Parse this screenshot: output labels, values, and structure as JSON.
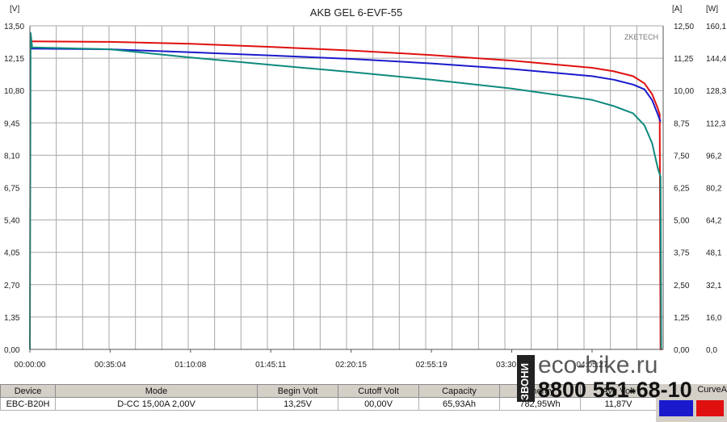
{
  "chart_data": {
    "type": "line",
    "title": "AKB GEL  6-EVF-55",
    "brand_label": "ZKETECH",
    "grid": true,
    "left_axis": {
      "unit_label": "[V]",
      "ylim": [
        0,
        13.5
      ],
      "ticks": [
        "0,00",
        "1,35",
        "2,70",
        "4,05",
        "5,40",
        "6,75",
        "8,10",
        "9,45",
        "10,80",
        "12,15",
        "13,50"
      ]
    },
    "current_axis": {
      "unit_label": "[A]",
      "ylim": [
        0,
        12.5
      ],
      "ticks": [
        "0,00",
        "1,25",
        "2,50",
        "3,75",
        "5,00",
        "6,25",
        "7,50",
        "8,75",
        "10,00",
        "11,25",
        "12,50"
      ]
    },
    "power_axis": {
      "unit_label": "[W]",
      "ylim": [
        0,
        160.1
      ],
      "ticks": [
        "0,0",
        "16,0",
        "32,1",
        "48,1",
        "64,2",
        "80,2",
        "96,2",
        "112,3",
        "128,3",
        "144,4",
        "160,1"
      ]
    },
    "x_axis": {
      "unit": "time",
      "range_seconds": [
        0,
        16590
      ],
      "ticks": [
        {
          "label": "00:00:00",
          "seconds": 0
        },
        {
          "label": "00:35:04",
          "seconds": 2104
        },
        {
          "label": "01:10:08",
          "seconds": 4208
        },
        {
          "label": "01:45:11",
          "seconds": 6311
        },
        {
          "label": "02:20:15",
          "seconds": 8415
        },
        {
          "label": "02:55:19",
          "seconds": 10519
        },
        {
          "label": "03:30:23",
          "seconds": 12623
        },
        {
          "label": "04:05:27",
          "seconds": 14727
        }
      ]
    },
    "series": [
      {
        "color": "#e01010",
        "axis": "left",
        "points": [
          [
            0,
            12.85
          ],
          [
            2104,
            12.83
          ],
          [
            4208,
            12.75
          ],
          [
            6311,
            12.62
          ],
          [
            8415,
            12.47
          ],
          [
            10519,
            12.28
          ],
          [
            12623,
            12.05
          ],
          [
            14727,
            11.75
          ],
          [
            15300,
            11.6
          ],
          [
            15800,
            11.4
          ],
          [
            16100,
            11.1
          ],
          [
            16300,
            10.65
          ],
          [
            16450,
            10.05
          ],
          [
            16500,
            9.8
          ],
          [
            16520,
            0
          ],
          [
            16560,
            0
          ]
        ]
      },
      {
        "color": "#1a1acc",
        "axis": "left",
        "points": [
          [
            0,
            12.55
          ],
          [
            2104,
            12.52
          ],
          [
            4208,
            12.4
          ],
          [
            6311,
            12.26
          ],
          [
            8415,
            12.12
          ],
          [
            10519,
            11.93
          ],
          [
            12623,
            11.7
          ],
          [
            14727,
            11.4
          ],
          [
            15300,
            11.25
          ],
          [
            15800,
            11.05
          ],
          [
            16100,
            10.85
          ],
          [
            16300,
            10.4
          ],
          [
            16450,
            9.8
          ],
          [
            16520,
            9.5
          ]
        ]
      },
      {
        "color": "#0e8a7e",
        "axis": "left",
        "points": [
          [
            0,
            0
          ],
          [
            20,
            13.2
          ],
          [
            60,
            12.6
          ],
          [
            2104,
            12.52
          ],
          [
            4208,
            12.18
          ],
          [
            6311,
            11.87
          ],
          [
            8415,
            11.57
          ],
          [
            10519,
            11.25
          ],
          [
            12623,
            10.88
          ],
          [
            14727,
            10.41
          ],
          [
            15300,
            10.15
          ],
          [
            15800,
            9.85
          ],
          [
            16100,
            9.35
          ],
          [
            16300,
            8.6
          ],
          [
            16450,
            7.55
          ],
          [
            16520,
            7.2
          ],
          [
            16540,
            0
          ]
        ]
      }
    ]
  },
  "footer": {
    "headers": [
      "Device",
      "Mode",
      "Begin Volt",
      "Cutoff Volt",
      "Capacity",
      "Energy",
      "Avg Volt"
    ],
    "values": [
      "EBC-B20H",
      "D-CC  15,00A  2,00V",
      "13,25V",
      "00,00V",
      "65,93Ah",
      "782,95Wh",
      "11,87V"
    ],
    "legend_label": "CurveA",
    "legend_colors": [
      "#1a1acc",
      "#e01010"
    ]
  },
  "watermark": {
    "call_text": "ЗВОНИ",
    "domain": "eco-bike.ru",
    "phone": "8800 551-68-10"
  }
}
